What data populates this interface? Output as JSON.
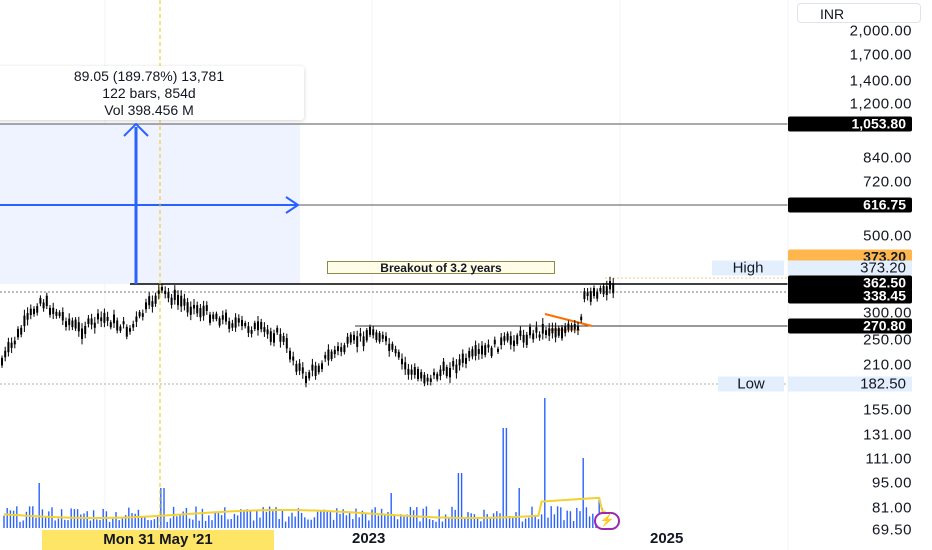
{
  "currency": "INR",
  "axis_labels": [
    "2,000.00",
    "1,700.00",
    "1,400.00",
    "1,200.00",
    "840.00",
    "720.00",
    "500.00",
    "300.00",
    "250.00",
    "210.00",
    "155.00",
    "131.00",
    "111.00",
    "95.00",
    "81.00",
    "69.50"
  ],
  "price_tags": {
    "target_upper": "1,053.80",
    "target_mid": "616.75",
    "high_value": "373.20",
    "resistance": "362.50",
    "last_price": "338.45",
    "support": "270.80",
    "low_value": "182.50"
  },
  "high_low": {
    "high_label": "High",
    "high_value": "373.20",
    "low_label": "Low",
    "low_value": "182.50"
  },
  "measure_box": {
    "line1": "89.05 (189.78%) 13,781",
    "line2": "122 bars, 854d",
    "line3": "Vol 398.456 M"
  },
  "breakout_label": "Breakout of 3.2 years",
  "time_axis": {
    "highlight": "Mon 31 May '21",
    "label_2023": "2023",
    "label_2025": "2025"
  },
  "colors": {
    "candle": "#000000",
    "volume": "#2962ff",
    "volume_ma": "#f2d230",
    "measure_fill": "#2962ff",
    "crosshair": "#f5c400",
    "flag_line": "#ff6d00"
  },
  "icons": {
    "lightning": "lightning-icon"
  }
}
